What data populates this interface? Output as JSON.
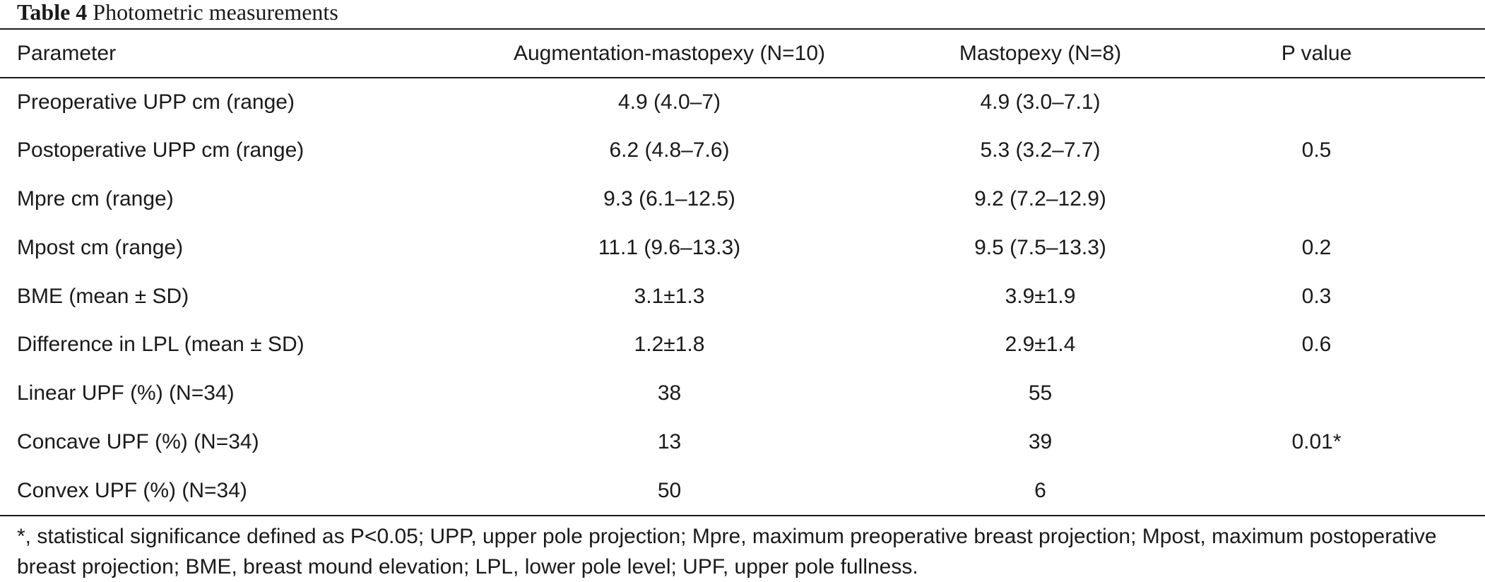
{
  "caption": {
    "label": "Table 4",
    "title": "Photometric measurements"
  },
  "table": {
    "headers": [
      "Parameter",
      "Augmentation-mastopexy (N=10)",
      "Mastopexy (N=8)",
      "P value"
    ],
    "rows": [
      [
        "Preoperative UPP cm (range)",
        "4.9 (4.0–7)",
        "4.9 (3.0–7.1)",
        ""
      ],
      [
        "Postoperative UPP cm (range)",
        "6.2 (4.8–7.6)",
        "5.3 (3.2–7.7)",
        "0.5"
      ],
      [
        "Mpre cm (range)",
        "9.3 (6.1–12.5)",
        "9.2 (7.2–12.9)",
        ""
      ],
      [
        "Mpost cm (range)",
        "11.1 (9.6–13.3)",
        "9.5 (7.5–13.3)",
        "0.2"
      ],
      [
        "BME (mean ± SD)",
        "3.1±1.3",
        "3.9±1.9",
        "0.3"
      ],
      [
        "Difference in LPL (mean ± SD)",
        "1.2±1.8",
        "2.9±1.4",
        "0.6"
      ],
      [
        "Linear UPF (%) (N=34)",
        "38",
        "55",
        ""
      ],
      [
        "Concave UPF (%) (N=34)",
        "13",
        "39",
        "0.01*"
      ],
      [
        "Convex UPF (%) (N=34)",
        "50",
        "6",
        ""
      ]
    ]
  },
  "footnote": "*, statistical significance defined as P<0.05; UPP, upper pole projection; Mpre, maximum preoperative breast projection; Mpost, maximum postoperative breast projection; BME, breast mound elevation; LPL, lower pole level; UPF, upper pole fullness."
}
